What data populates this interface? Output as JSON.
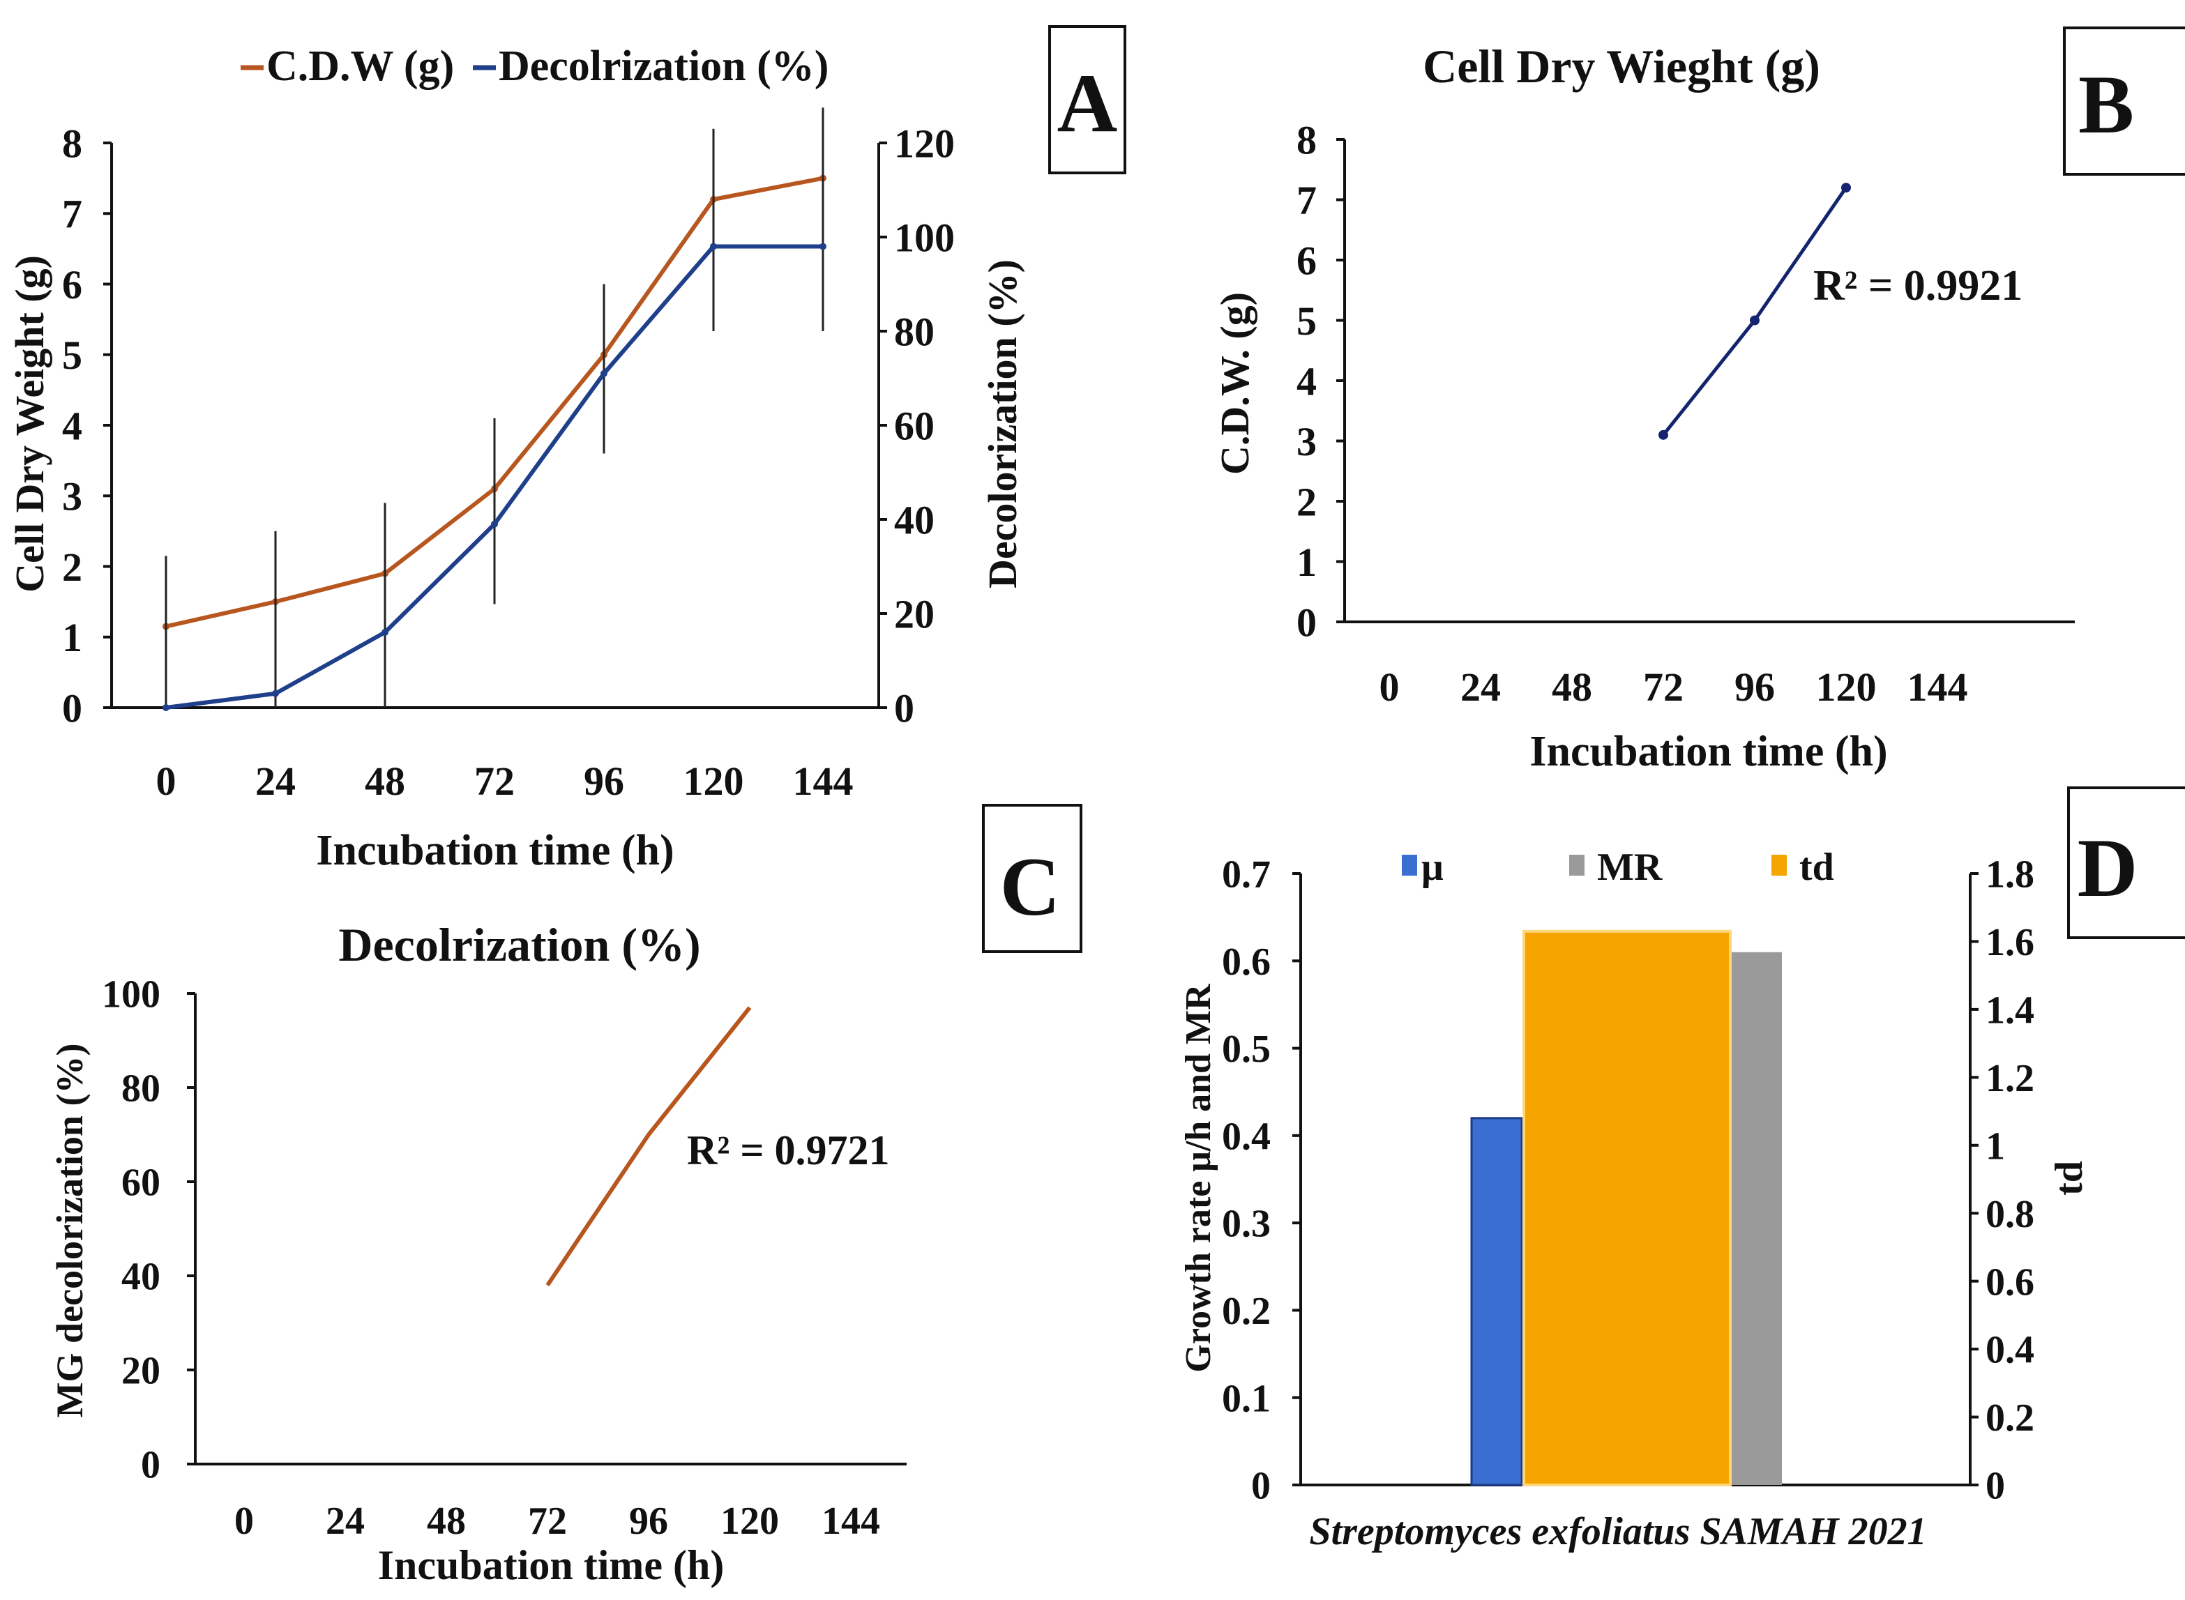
{
  "colors": {
    "cdw": "#b8561f",
    "decol": "#1f3f8a",
    "mu": "#3a6fd1",
    "mr": "#9a9a9a",
    "td": "#f5a400",
    "axis": "#111111"
  },
  "panels": {
    "A": "A",
    "B": "B",
    "C": "C",
    "D": "D"
  },
  "chart_data": [
    {
      "panel": "A",
      "type": "line",
      "title": "",
      "legend": [
        "C.D.W (g)",
        "Decolrization (%)"
      ],
      "legend_position": "top",
      "xlabel": "Incubation time (h)",
      "ylabel": "Cell Dry Weight (g)",
      "y2label": "Decolorization (%)",
      "categories": [
        "0",
        "24",
        "48",
        "72",
        "96",
        "120",
        "144"
      ],
      "ylim": [
        0,
        8
      ],
      "yticks": [
        "0",
        "1",
        "2",
        "3",
        "4",
        "5",
        "6",
        "7",
        "8"
      ],
      "y2lim": [
        0,
        120
      ],
      "y2ticks": [
        "0",
        "20",
        "40",
        "60",
        "80",
        "100",
        "120"
      ],
      "series": [
        {
          "name": "C.D.W (g)",
          "axis": "left",
          "values": [
            1.15,
            1.5,
            1.9,
            3.1,
            5.0,
            7.2,
            7.5
          ],
          "err": [
            1.0,
            1.0,
            1.0,
            1.0,
            1.0,
            1.0,
            1.0
          ]
        },
        {
          "name": "Decolrization (%)",
          "axis": "right",
          "values": [
            0,
            3,
            16,
            39,
            71,
            98,
            98
          ],
          "err": [
            32,
            34,
            27,
            17,
            17,
            18,
            18
          ]
        }
      ]
    },
    {
      "panel": "B",
      "type": "line",
      "title": "Cell Dry Wieght (g)",
      "xlabel": "Incubation time (h)",
      "ylabel": "C.D.W. (g)",
      "categories": [
        "0",
        "24",
        "48",
        "72",
        "96",
        "120",
        "144"
      ],
      "ylim": [
        0,
        8
      ],
      "yticks": [
        "0",
        "1",
        "2",
        "3",
        "4",
        "5",
        "6",
        "7",
        "8"
      ],
      "series": [
        {
          "name": "C.D.W.",
          "x": [
            "72",
            "96",
            "120"
          ],
          "values": [
            3.1,
            5.0,
            7.2
          ]
        }
      ],
      "annotation": "R² = 0.9921"
    },
    {
      "panel": "C",
      "type": "line",
      "title": "Decolrization (%)",
      "xlabel": "Incubation time (h)",
      "ylabel": "MG decolorization (%)",
      "categories": [
        "0",
        "24",
        "48",
        "72",
        "96",
        "120",
        "144"
      ],
      "ylim": [
        0,
        100
      ],
      "yticks": [
        "0",
        "20",
        "40",
        "60",
        "80",
        "100"
      ],
      "series": [
        {
          "name": "Decolorization",
          "x": [
            "72",
            "96",
            "120"
          ],
          "values": [
            38,
            70,
            97
          ]
        }
      ],
      "annotation": "R² = 0.9721"
    },
    {
      "panel": "D",
      "type": "bar",
      "title": "",
      "legend": [
        "μ",
        "MR",
        "td"
      ],
      "legend_position": "top",
      "xlabel": "Streptomyces exfoliatus SAMAH 2021",
      "ylabel": "Growth rate μ/h and MR",
      "y2label": "td",
      "categories": [
        "Streptomyces exfoliatus SAMAH 2021"
      ],
      "ylim": [
        0,
        0.7
      ],
      "yticks": [
        "0",
        "0.1",
        "0.2",
        "0.3",
        "0.4",
        "0.5",
        "0.6",
        "0.7"
      ],
      "y2lim": [
        0,
        1.8
      ],
      "y2ticks": [
        "0",
        "0.2",
        "0.4",
        "0.6",
        "0.8",
        "1",
        "1.2",
        "1.4",
        "1.6",
        "1.8"
      ],
      "series": [
        {
          "name": "μ",
          "axis": "left",
          "values": [
            0.42
          ]
        },
        {
          "name": "MR",
          "axis": "left",
          "values": [
            0.61
          ]
        },
        {
          "name": "td",
          "axis": "right",
          "values": [
            1.63
          ]
        }
      ]
    }
  ]
}
